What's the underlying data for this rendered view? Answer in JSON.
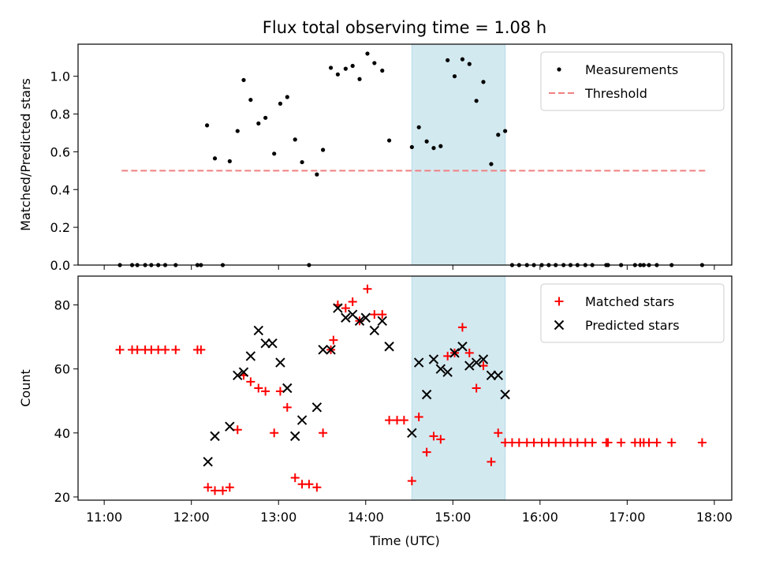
{
  "title": "Flux total observing time = 1.08 h",
  "chart_data": [
    {
      "type": "scatter",
      "ylabel": "Matched/Predicted stars",
      "xlabel": "",
      "x_unit": "hours UTC",
      "xlim": [
        10.7,
        18.2
      ],
      "ylim": [
        0,
        1.17
      ],
      "yticks": [
        0.0,
        0.2,
        0.4,
        0.6,
        0.8,
        1.0
      ],
      "ytick_labels": [
        "0.0",
        "0.2",
        "0.4",
        "0.6",
        "0.8",
        "1.0"
      ],
      "shaded_region": {
        "x0": 14.53,
        "x1": 15.6,
        "color": "#d3e9f0"
      },
      "legend_position": "top-right",
      "series": [
        {
          "name": "Measurements",
          "marker": "dot",
          "color": "#000000",
          "points": [
            [
              11.18,
              0.0
            ],
            [
              11.32,
              0.0
            ],
            [
              11.38,
              0.0
            ],
            [
              11.47,
              0.0
            ],
            [
              11.54,
              0.0
            ],
            [
              11.62,
              0.0
            ],
            [
              11.7,
              0.0
            ],
            [
              11.82,
              0.0
            ],
            [
              12.07,
              0.0
            ],
            [
              12.11,
              0.0
            ],
            [
              12.36,
              0.0
            ],
            [
              13.35,
              0.0
            ],
            [
              12.18,
              0.74
            ],
            [
              12.27,
              0.565
            ],
            [
              12.44,
              0.55
            ],
            [
              12.53,
              0.71
            ],
            [
              12.6,
              0.98
            ],
            [
              12.68,
              0.875
            ],
            [
              12.77,
              0.75
            ],
            [
              12.85,
              0.78
            ],
            [
              12.95,
              0.59
            ],
            [
              13.02,
              0.855
            ],
            [
              13.1,
              0.89
            ],
            [
              13.19,
              0.665
            ],
            [
              13.27,
              0.545
            ],
            [
              13.44,
              0.48
            ],
            [
              13.51,
              0.61
            ],
            [
              13.6,
              1.045
            ],
            [
              13.68,
              1.01
            ],
            [
              13.77,
              1.04
            ],
            [
              13.85,
              1.055
            ],
            [
              13.93,
              0.985
            ],
            [
              14.02,
              1.12
            ],
            [
              14.1,
              1.07
            ],
            [
              14.19,
              1.03
            ],
            [
              14.27,
              0.66
            ],
            [
              14.53,
              0.625
            ],
            [
              14.61,
              0.73
            ],
            [
              14.7,
              0.655
            ],
            [
              14.78,
              0.62
            ],
            [
              14.86,
              0.63
            ],
            [
              14.94,
              1.085
            ],
            [
              15.02,
              1.0
            ],
            [
              15.11,
              1.09
            ],
            [
              15.19,
              1.065
            ],
            [
              15.27,
              0.87
            ],
            [
              15.35,
              0.97
            ],
            [
              15.44,
              0.535
            ],
            [
              15.52,
              0.69
            ],
            [
              15.6,
              0.71
            ],
            [
              15.68,
              0.0
            ],
            [
              15.76,
              0.0
            ],
            [
              15.85,
              0.0
            ],
            [
              15.93,
              0.0
            ],
            [
              16.02,
              0.0
            ],
            [
              16.1,
              0.0
            ],
            [
              16.18,
              0.0
            ],
            [
              16.27,
              0.0
            ],
            [
              16.35,
              0.0
            ],
            [
              16.43,
              0.0
            ],
            [
              16.52,
              0.0
            ],
            [
              16.6,
              0.0
            ],
            [
              16.76,
              0.0
            ],
            [
              16.78,
              0.0
            ],
            [
              16.93,
              0.0
            ],
            [
              17.09,
              0.0
            ],
            [
              17.15,
              0.0
            ],
            [
              17.19,
              0.0
            ],
            [
              17.25,
              0.0
            ],
            [
              17.34,
              0.0
            ],
            [
              17.51,
              0.0
            ],
            [
              17.86,
              0.0
            ]
          ]
        },
        {
          "name": "Threshold",
          "marker": "dashed-line",
          "color": "#f08080",
          "points": [
            [
              11.2,
              0.5
            ],
            [
              17.9,
              0.5
            ]
          ]
        }
      ]
    },
    {
      "type": "scatter",
      "ylabel": "Count",
      "xlabel": "Time (UTC)",
      "x_unit": "hours UTC",
      "xlim": [
        10.7,
        18.2
      ],
      "ylim": [
        19,
        89
      ],
      "yticks": [
        20,
        40,
        60,
        80
      ],
      "ytick_labels": [
        "20",
        "40",
        "60",
        "80"
      ],
      "xticks": [
        11,
        12,
        13,
        14,
        15,
        16,
        17,
        18
      ],
      "xtick_labels": [
        "11:00",
        "12:00",
        "13:00",
        "14:00",
        "15:00",
        "16:00",
        "17:00",
        "18:00"
      ],
      "shaded_region": {
        "x0": 14.53,
        "x1": 15.6,
        "color": "#d3e9f0"
      },
      "legend_position": "top-right",
      "series": [
        {
          "name": "Matched stars",
          "marker": "plus",
          "color": "#ff0000",
          "points": [
            [
              11.18,
              66
            ],
            [
              11.32,
              66
            ],
            [
              11.38,
              66
            ],
            [
              11.47,
              66
            ],
            [
              11.54,
              66
            ],
            [
              11.62,
              66
            ],
            [
              11.7,
              66
            ],
            [
              11.82,
              66
            ],
            [
              12.07,
              66
            ],
            [
              12.11,
              66
            ],
            [
              12.19,
              23
            ],
            [
              12.27,
              22
            ],
            [
              12.36,
              22
            ],
            [
              12.44,
              23
            ],
            [
              12.53,
              41
            ],
            [
              12.6,
              58
            ],
            [
              12.68,
              56
            ],
            [
              12.77,
              54
            ],
            [
              12.85,
              53
            ],
            [
              12.95,
              40
            ],
            [
              13.02,
              53
            ],
            [
              13.1,
              48
            ],
            [
              13.19,
              26
            ],
            [
              13.27,
              24
            ],
            [
              13.35,
              24
            ],
            [
              13.44,
              23
            ],
            [
              13.51,
              40
            ],
            [
              13.6,
              66
            ],
            [
              13.63,
              69
            ],
            [
              13.68,
              80
            ],
            [
              13.77,
              79
            ],
            [
              13.85,
              81
            ],
            [
              13.93,
              75
            ],
            [
              14.02,
              85
            ],
            [
              14.1,
              77
            ],
            [
              14.19,
              77
            ],
            [
              14.27,
              44
            ],
            [
              14.36,
              44
            ],
            [
              14.44,
              44
            ],
            [
              14.53,
              25
            ],
            [
              14.61,
              45
            ],
            [
              14.7,
              34
            ],
            [
              14.78,
              39
            ],
            [
              14.86,
              38
            ],
            [
              14.94,
              64
            ],
            [
              15.02,
              65
            ],
            [
              15.11,
              73
            ],
            [
              15.19,
              65
            ],
            [
              15.27,
              54
            ],
            [
              15.35,
              61
            ],
            [
              15.44,
              31
            ],
            [
              15.52,
              40
            ],
            [
              15.6,
              37
            ],
            [
              15.68,
              37
            ],
            [
              15.76,
              37
            ],
            [
              15.85,
              37
            ],
            [
              15.93,
              37
            ],
            [
              16.02,
              37
            ],
            [
              16.1,
              37
            ],
            [
              16.18,
              37
            ],
            [
              16.27,
              37
            ],
            [
              16.35,
              37
            ],
            [
              16.43,
              37
            ],
            [
              16.52,
              37
            ],
            [
              16.6,
              37
            ],
            [
              16.76,
              37
            ],
            [
              16.78,
              37
            ],
            [
              16.93,
              37
            ],
            [
              17.09,
              37
            ],
            [
              17.15,
              37
            ],
            [
              17.19,
              37
            ],
            [
              17.25,
              37
            ],
            [
              17.34,
              37
            ],
            [
              17.51,
              37
            ],
            [
              17.86,
              37
            ]
          ]
        },
        {
          "name": "Predicted stars",
          "marker": "x",
          "color": "#000000",
          "points": [
            [
              12.19,
              31
            ],
            [
              12.27,
              39
            ],
            [
              12.44,
              42
            ],
            [
              12.53,
              58
            ],
            [
              12.6,
              59
            ],
            [
              12.68,
              64
            ],
            [
              12.77,
              72
            ],
            [
              12.85,
              68
            ],
            [
              12.93,
              68
            ],
            [
              13.02,
              62
            ],
            [
              13.1,
              54
            ],
            [
              13.19,
              39
            ],
            [
              13.27,
              44
            ],
            [
              13.44,
              48
            ],
            [
              13.51,
              66
            ],
            [
              13.6,
              66
            ],
            [
              13.68,
              79
            ],
            [
              13.77,
              76
            ],
            [
              13.85,
              77
            ],
            [
              13.93,
              75
            ],
            [
              14.0,
              76
            ],
            [
              14.1,
              72
            ],
            [
              14.19,
              75
            ],
            [
              14.27,
              67
            ],
            [
              14.53,
              40
            ],
            [
              14.61,
              62
            ],
            [
              14.7,
              52
            ],
            [
              14.78,
              63
            ],
            [
              14.86,
              60
            ],
            [
              14.94,
              59
            ],
            [
              15.02,
              65
            ],
            [
              15.11,
              67
            ],
            [
              15.19,
              61
            ],
            [
              15.27,
              62
            ],
            [
              15.35,
              63
            ],
            [
              15.44,
              58
            ],
            [
              15.52,
              58
            ],
            [
              15.6,
              52
            ]
          ]
        }
      ]
    }
  ]
}
